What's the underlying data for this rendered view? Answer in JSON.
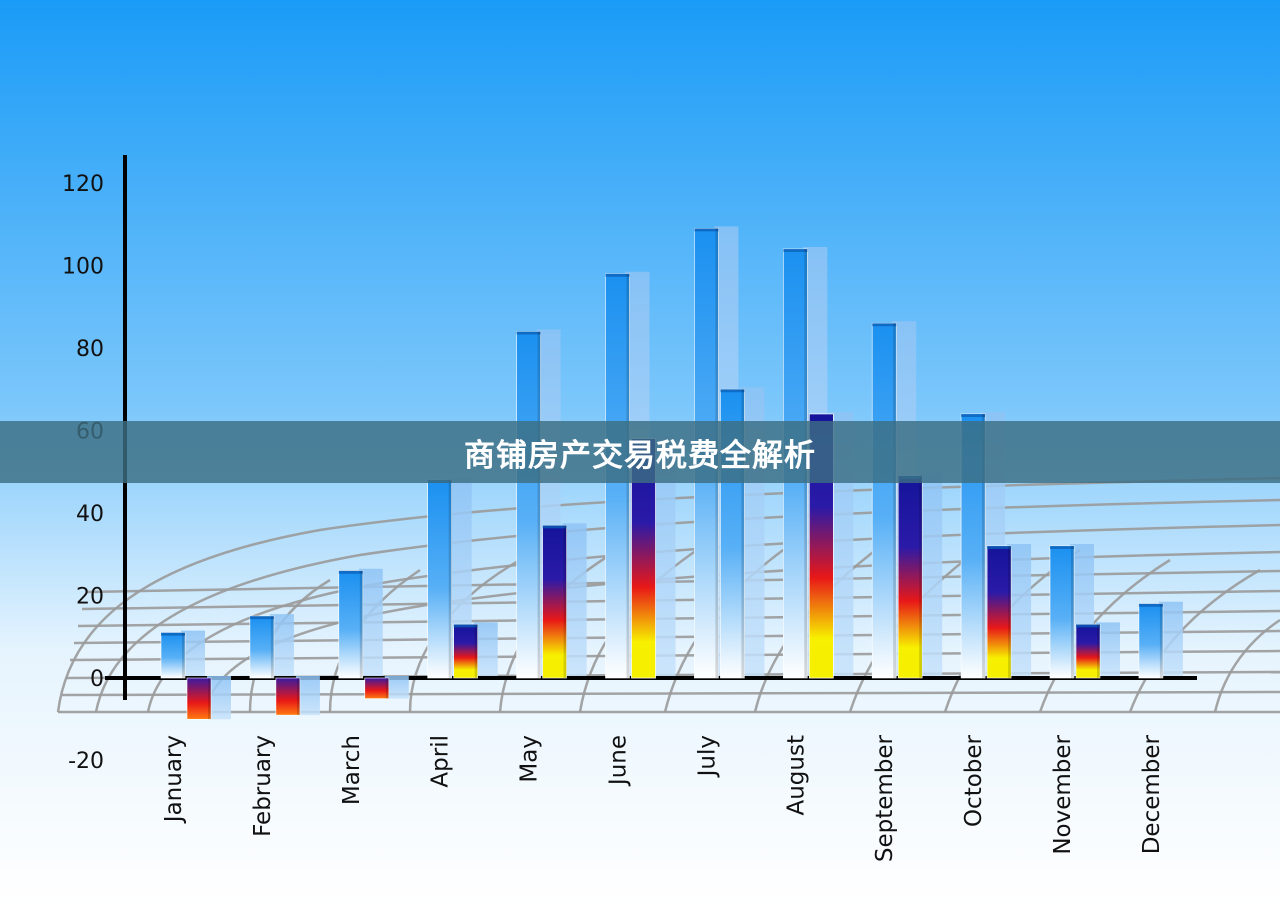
{
  "banner": {
    "title": "商铺房产交易税费全解析"
  },
  "colors": {
    "sky_top": "#1a9bf7",
    "sky_bottom": "#ffffff",
    "bar_blue": "#1a90f0",
    "bar_navy": "#14149a",
    "bar_red": "#e81818",
    "bar_yellow": "#f5f000",
    "banner_bg": "#3c6e82"
  },
  "chart_data": {
    "type": "bar",
    "title": "",
    "xlabel": "",
    "ylabel": "",
    "ylim": [
      -20,
      125
    ],
    "yticks": [
      -20,
      0,
      20,
      40,
      60,
      80,
      100,
      120
    ],
    "categories": [
      "January",
      "February",
      "March",
      "April",
      "May",
      "June",
      "July",
      "August",
      "September",
      "October",
      "November",
      "December"
    ],
    "series": [
      {
        "values": [
          11,
          15,
          26,
          48,
          84,
          98,
          109,
          104,
          86,
          64,
          32,
          18
        ]
      },
      {
        "values": [
          -10,
          -9,
          -5,
          13,
          37,
          58,
          70,
          64,
          49,
          32,
          13,
          null
        ]
      }
    ],
    "grid": true,
    "legend": "none"
  }
}
